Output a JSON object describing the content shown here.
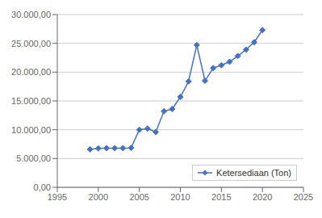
{
  "chart_data": {
    "type": "line",
    "x": [
      1999,
      2000,
      2001,
      2002,
      2003,
      2004,
      2005,
      2006,
      2007,
      2008,
      2009,
      2010,
      2011,
      2012,
      2013,
      2014,
      2015,
      2016,
      2017,
      2018,
      2019,
      2020
    ],
    "series": [
      {
        "name": "Ketersediaan (Ton)",
        "color": "#4472C4",
        "marker": "diamond",
        "values": [
          6600,
          6750,
          6800,
          6800,
          6800,
          6850,
          10000,
          10200,
          9600,
          13200,
          13600,
          15700,
          18400,
          24700,
          18500,
          20700,
          21200,
          21800,
          22800,
          23900,
          25200,
          27300
        ]
      }
    ],
    "xlim": [
      1995,
      2025
    ],
    "xticks": [
      1995,
      2000,
      2005,
      2010,
      2015,
      2020,
      2025
    ],
    "ylim": [
      0,
      30000
    ],
    "yticks": [
      {
        "value": 0,
        "label": "0,00"
      },
      {
        "value": 5000,
        "label": "5.000,00"
      },
      {
        "value": 10000,
        "label": "10.000,00"
      },
      {
        "value": 15000,
        "label": "15.000,00"
      },
      {
        "value": 20000,
        "label": "20.000,00"
      },
      {
        "value": 25000,
        "label": "25.000,00"
      },
      {
        "value": 30000,
        "label": "30.000,00"
      }
    ],
    "grid": true,
    "legend": "lower right"
  }
}
